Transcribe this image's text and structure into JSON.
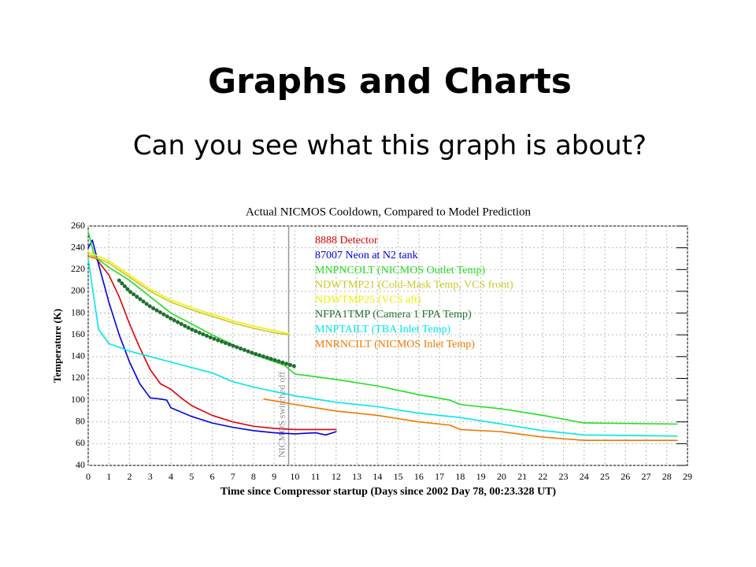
{
  "header": {
    "title": "Graphs and Charts",
    "subtitle": "Can you see what this graph is about?"
  },
  "chart_data": {
    "type": "line",
    "title": "Actual NICMOS Cooldown, Compared to Model Prediction",
    "x_label": "Time since Compressor startup (Days since 2002 Day 78, 00:23.328 UT)",
    "y_label": "Temperature (K)",
    "xlim": [
      0,
      29
    ],
    "ylim": [
      40,
      260
    ],
    "xticks": [
      0,
      1,
      2,
      3,
      4,
      5,
      6,
      7,
      8,
      9,
      10,
      11,
      12,
      13,
      14,
      15,
      16,
      17,
      18,
      19,
      20,
      21,
      22,
      23,
      24,
      25,
      26,
      27,
      28,
      29
    ],
    "yticks": [
      40,
      60,
      80,
      100,
      120,
      140,
      160,
      180,
      200,
      220,
      240,
      260
    ],
    "grid": true,
    "annotations": [
      {
        "text": "NICMOS switched off",
        "x": 9.7
      }
    ],
    "series": [
      {
        "name": "8888 Detector",
        "color": "#e00000",
        "x": [
          0.3,
          1,
          1.5,
          2,
          2.5,
          3,
          3.5,
          4,
          4.5,
          5,
          6,
          7,
          8,
          9,
          10,
          11,
          12
        ],
        "values": [
          232,
          215,
          195,
          170,
          148,
          128,
          115,
          110,
          102,
          95,
          86,
          80,
          76,
          74,
          73,
          73,
          73
        ]
      },
      {
        "name": "87007 Neon at N2 tank",
        "color": "#0000e0",
        "x": [
          0,
          0.2,
          0.5,
          1,
          1.5,
          2,
          2.5,
          3,
          3.5,
          3.8,
          4,
          5,
          6,
          7,
          8,
          9,
          10,
          11,
          11.5,
          12
        ],
        "values": [
          240,
          247,
          225,
          190,
          160,
          135,
          115,
          102,
          101,
          100,
          93,
          85,
          79,
          75,
          72,
          70,
          69,
          70,
          68,
          71
        ]
      },
      {
        "name": "MNPNCOLT (NICMOS Outlet Temp)",
        "color": "#22dd22",
        "x": [
          0,
          0.3,
          1,
          2,
          4,
          6,
          8,
          9.5,
          10,
          12,
          14,
          16,
          17.5,
          18,
          20,
          22,
          24,
          28.5
        ],
        "values": [
          255,
          232,
          222,
          210,
          180,
          160,
          142,
          132,
          124,
          119,
          113,
          105,
          100,
          96,
          92,
          86,
          79,
          78
        ]
      },
      {
        "name": "NDWTMP21 (Cold-Mask Temp, VCS front)",
        "color": "#c8c828",
        "x": [
          0,
          1,
          2,
          3,
          4,
          5,
          6,
          7,
          8,
          9,
          9.7
        ],
        "values": [
          234,
          226,
          213,
          200,
          190,
          183,
          177,
          171,
          166,
          162,
          160
        ]
      },
      {
        "name": "NDWTMP25 (VCS aft)",
        "color": "#f0f000",
        "x": [
          0,
          1,
          2,
          3,
          4,
          5,
          6,
          7,
          8,
          9,
          9.7
        ],
        "values": [
          236,
          228,
          215,
          202,
          192,
          185,
          179,
          173,
          168,
          164,
          161
        ]
      },
      {
        "name": "NFPA1TMP (Camera 1 FPA Temp)",
        "color": "#207030",
        "linewidth": 5,
        "x": [
          1.5,
          2,
          3,
          4,
          5,
          6,
          7,
          8,
          9,
          10
        ],
        "values": [
          210,
          200,
          186,
          175,
          165,
          157,
          150,
          143,
          137,
          131
        ]
      },
      {
        "name": "MNPTAILT (TBA Inlet Temp)",
        "color": "#00e8e8",
        "x": [
          0,
          0.5,
          1,
          2,
          3,
          4,
          5,
          6,
          7,
          8,
          9,
          10,
          12,
          14,
          16,
          18,
          20,
          22,
          24,
          28.5
        ],
        "values": [
          230,
          165,
          152,
          145,
          140,
          135,
          130,
          125,
          117,
          112,
          108,
          104,
          98,
          94,
          88,
          84,
          78,
          72,
          68,
          67
        ]
      },
      {
        "name": "MNRNCILT (NICMOS Inlet Temp)",
        "color": "#f07800",
        "x": [
          0,
          0.4,
          7.8,
          8.5,
          10,
          12,
          14,
          16,
          17.5,
          18,
          20,
          22,
          24,
          28.5
        ],
        "values": [
          232,
          230,
          null,
          101,
          96,
          90,
          86,
          80,
          77,
          73,
          71,
          66,
          63,
          63
        ]
      }
    ]
  }
}
